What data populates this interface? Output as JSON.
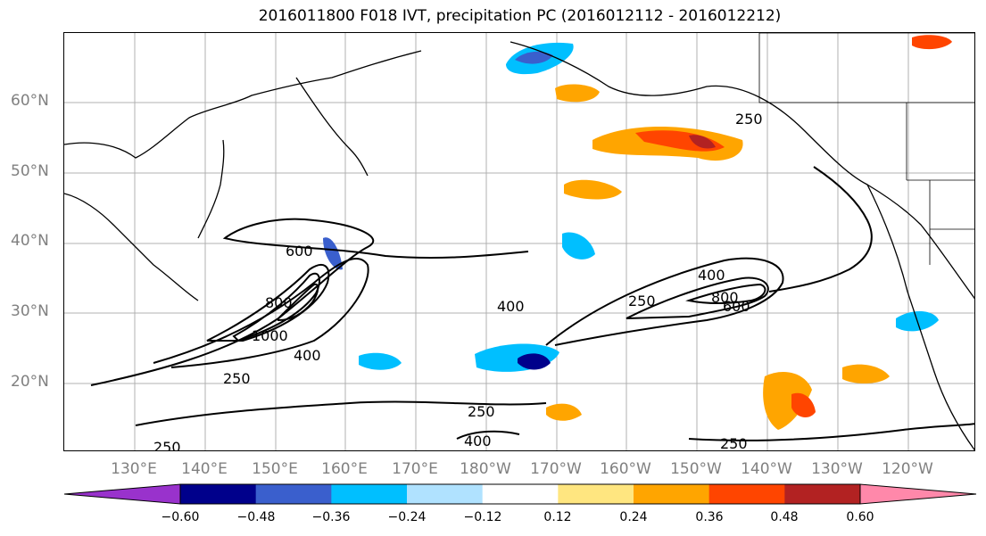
{
  "title": "2016011800 F018 IVT, precipitation PC (2016012112 - 2016012212)",
  "map": {
    "lat_labels": [
      "60°N",
      "50°N",
      "40°N",
      "30°N",
      "20°N"
    ],
    "lon_labels": [
      "130°E",
      "140°E",
      "150°E",
      "160°E",
      "170°E",
      "180°W",
      "170°W",
      "160°W",
      "150°W",
      "140°W",
      "130°W",
      "120°W"
    ],
    "ivt_contour_labels": [
      "250",
      "400",
      "600",
      "800",
      "1000",
      "250",
      "400",
      "250",
      "400",
      "250",
      "400",
      "800",
      "600",
      "250",
      "250"
    ],
    "colors": {
      "contour": "#000000",
      "grid": "#b0b0b0",
      "coast": "#000000"
    }
  },
  "colorbar": {
    "ticks": [
      "−0.60",
      "−0.48",
      "−0.36",
      "−0.24",
      "−0.12",
      "0.12",
      "0.24",
      "0.36",
      "0.48",
      "0.60"
    ],
    "colors": [
      "#9932cc",
      "#00008b",
      "#3a5fcd",
      "#00bfff",
      "#b0e2ff",
      "#ffffff",
      "#ffe680",
      "#ffa500",
      "#ff4500",
      "#b22222",
      "#ff88aa"
    ]
  }
}
